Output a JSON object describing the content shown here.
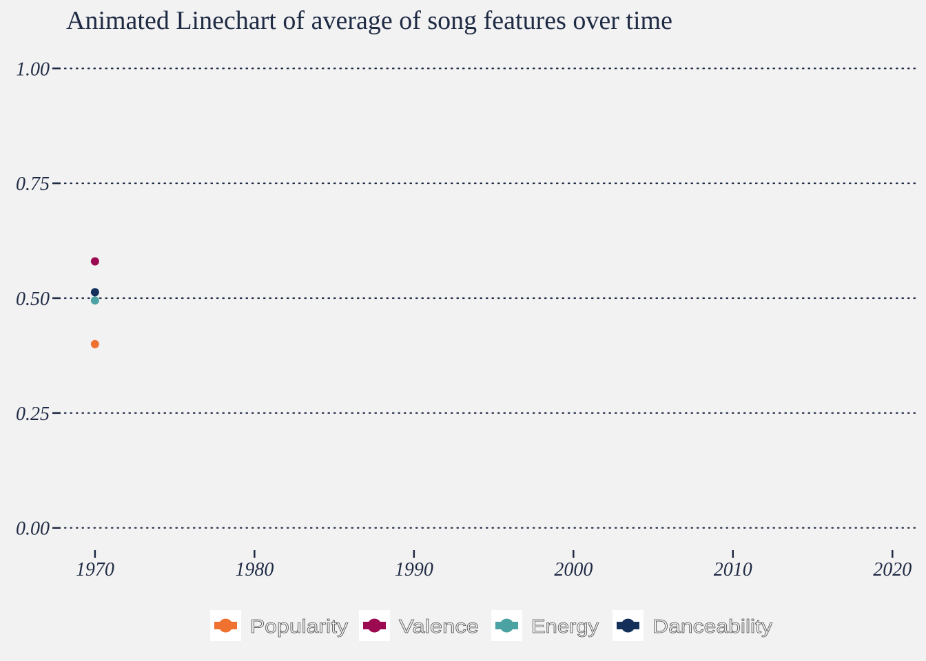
{
  "chart_data": {
    "type": "line",
    "title": "Animated Linechart of average of song features over time",
    "xlabel": "",
    "ylabel": "",
    "x": [
      1970
    ],
    "xlim": [
      1967.5,
      2021.5
    ],
    "ylim": [
      -0.05,
      1.05
    ],
    "x_ticks": [
      1970,
      1980,
      1990,
      2000,
      2010,
      2020
    ],
    "y_ticks": [
      0.0,
      0.25,
      0.5,
      0.75,
      1.0
    ],
    "y_tick_labels": [
      "0.00",
      "0.25",
      "0.50",
      "0.75",
      "1.00"
    ],
    "grid": "horizontal dotted",
    "legend_position": "bottom",
    "series": [
      {
        "name": "Popularity",
        "color": "#f07230",
        "values": [
          0.4
        ]
      },
      {
        "name": "Valence",
        "color": "#9c0a52",
        "values": [
          0.58
        ]
      },
      {
        "name": "Energy",
        "color": "#4aa3a2",
        "values": [
          0.495
        ]
      },
      {
        "name": "Danceability",
        "color": "#14305a",
        "values": [
          0.513
        ]
      }
    ]
  }
}
